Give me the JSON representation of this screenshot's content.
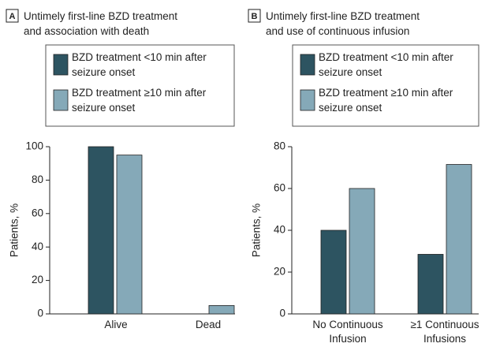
{
  "chart_data": [
    {
      "type": "bar",
      "panel": "A",
      "title": "Untimely first-line BZD treatment and association with death",
      "y_label": "Patients, %",
      "categories": [
        "Alive",
        "Dead"
      ],
      "series": [
        {
          "name": "BZD treatment <10 min after seizure onset",
          "color": "#2d5461",
          "values": [
            100,
            0
          ]
        },
        {
          "name": "BZD treatment ≥10 min after seizure onset",
          "color": "#85a9b8",
          "values": [
            95,
            5
          ]
        }
      ],
      "ylim": [
        0,
        100
      ],
      "yticks": [
        0,
        20,
        40,
        60,
        80,
        100
      ]
    },
    {
      "type": "bar",
      "panel": "B",
      "title": "Untimely first-line BZD treatment and use of continuous infusion",
      "y_label": "Patients, %",
      "categories": [
        "No Continuous Infusion",
        "≥1 Continuous Infusions"
      ],
      "series": [
        {
          "name": "BZD treatment <10 min after seizure onset",
          "color": "#2d5461",
          "values": [
            40,
            28.5
          ]
        },
        {
          "name": "BZD treatment ≥10 min after seizure onset",
          "color": "#85a9b8",
          "values": [
            60,
            71.5
          ]
        }
      ],
      "ylim": [
        0,
        80
      ],
      "yticks": [
        0,
        20,
        40,
        60,
        80
      ]
    }
  ]
}
